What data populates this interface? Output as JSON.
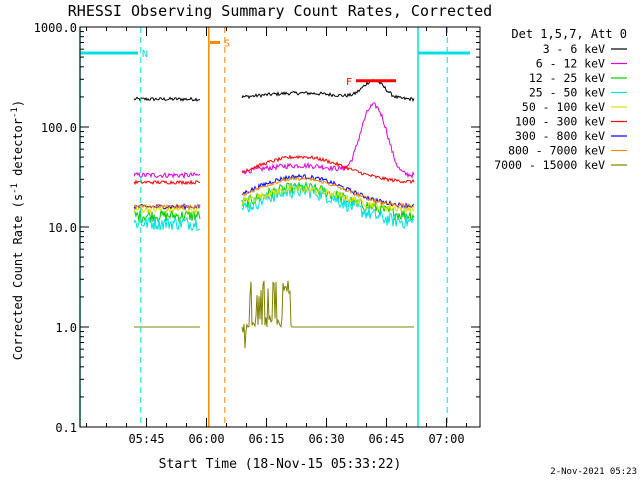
{
  "chart_data": {
    "type": "line",
    "title": "RHESSI Observing Summary Count Rates, Corrected",
    "xlabel": "Start Time (18-Nov-15 05:33:22)",
    "ylabel_main": "Corrected Count Rate (s",
    "ylabel_sup1": "-1",
    "ylabel_mid": " detector",
    "ylabel_sup2": "-1",
    "ylabel_end": ")",
    "y_scale": "log",
    "ylim": [
      0.1,
      1000
    ],
    "y_ticks": [
      {
        "value": 1000,
        "label": "1000.0"
      },
      {
        "value": 100,
        "label": "100.0"
      },
      {
        "value": 10,
        "label": "10.0"
      },
      {
        "value": 1,
        "label": "1.0"
      },
      {
        "value": 0.1,
        "label": "0.1"
      }
    ],
    "x_unit": "minutes",
    "xlim": [
      -5,
      95
    ],
    "x_ticks": [
      {
        "value": 11.63,
        "label": "05:45"
      },
      {
        "value": 26.63,
        "label": "06:00"
      },
      {
        "value": 41.63,
        "label": "06:15"
      },
      {
        "value": 56.63,
        "label": "06:30"
      },
      {
        "value": 71.63,
        "label": "06:45"
      },
      {
        "value": 86.63,
        "label": "07:00"
      }
    ],
    "legend_header": "Det 1,5,7, Att 0",
    "series": [
      {
        "name": "3 - 6 keV",
        "color": "#000000",
        "base": 190,
        "hump": 1.15,
        "flare": 1.5,
        "noise": 0.04
      },
      {
        "name": "6 - 12 keV",
        "color": "#e000e0",
        "base": 33,
        "hump": 1.25,
        "flare": 4.8,
        "noise": 0.06
      },
      {
        "name": "12 - 25 keV",
        "color": "#00cc00",
        "base": 13,
        "hump": 1.9,
        "flare": 1.05,
        "noise": 0.14
      },
      {
        "name": "25 - 50 keV",
        "color": "#00e0e0",
        "base": 11,
        "hump": 2.1,
        "flare": 1.0,
        "noise": 0.16
      },
      {
        "name": "50 - 100 keV",
        "color": "#e0e000",
        "base": 15,
        "hump": 1.6,
        "flare": 1.0,
        "noise": 0.08
      },
      {
        "name": "100 - 300 keV",
        "color": "#ff0000",
        "base": 28,
        "hump": 1.8,
        "flare": 1.0,
        "noise": 0.04
      },
      {
        "name": "300 - 800 keV",
        "color": "#0000ff",
        "base": 16,
        "hump": 2.0,
        "flare": 1.0,
        "noise": 0.05
      },
      {
        "name": "800 - 7000 keV",
        "color": "#ff8800",
        "base": 16,
        "hump": 1.9,
        "flare": 1.0,
        "noise": 0.04
      },
      {
        "name": "7000 - 15000 keV",
        "color": "#808000",
        "base": 1.0,
        "hump": 1.0,
        "flare": 1.0,
        "noise": 0.0
      }
    ],
    "data_gaps": [
      [
        25.2,
        35.5
      ]
    ],
    "data_range": [
      8.5,
      78.5
    ],
    "flare_peak": 68.5,
    "annotations": [
      {
        "label": "N",
        "color": "#00e0e0",
        "bar_start": -5,
        "bar_end": 9.5,
        "y": 550,
        "lines": [
          10.2,
          86.8
        ],
        "solid_lines": [
          -5,
          79.5
        ]
      },
      {
        "label": "S",
        "color": "#ff8800",
        "bar_start": 27.5,
        "bar_end": 30,
        "y": 700,
        "lines": [
          31.2
        ],
        "solid_lines": [
          27.2
        ]
      },
      {
        "label": "F",
        "color": "#ff0000",
        "bar_start": 64,
        "bar_end": 74,
        "y": 290,
        "lines": [],
        "solid_lines": []
      }
    ]
  },
  "footer": {
    "timestamp": "2-Nov-2021 05:23"
  }
}
